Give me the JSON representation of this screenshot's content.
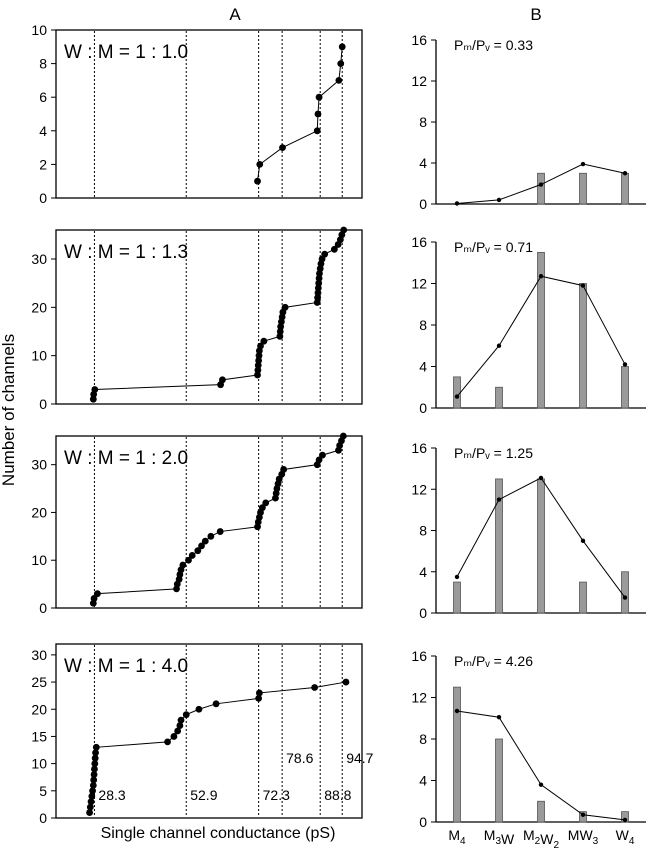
{
  "figure": {
    "column_a_label": "A",
    "column_b_label": "B",
    "y_axis_label": "Number of channels",
    "x_axis_label": "Single channel conductance (pS)",
    "mark_labels": [
      "28.3",
      "52.9",
      "72.3",
      "78.6",
      "88.8",
      "94.7"
    ]
  },
  "chart_data": [
    {
      "type": "scatter",
      "panel": "A1",
      "ratio_label": "W : M  =  1 : 1.0",
      "ylim": [
        0,
        10
      ],
      "yticks": [
        0,
        2,
        4,
        6,
        8,
        10
      ],
      "xlim": [
        18,
        100
      ],
      "reference_lines": [
        28.3,
        52.9,
        72.3,
        78.6,
        88.8,
        94.7
      ],
      "points": [
        [
          72.0,
          1
        ],
        [
          72.6,
          2
        ],
        [
          78.7,
          3
        ],
        [
          88.0,
          4
        ],
        [
          88.2,
          5
        ],
        [
          88.5,
          6
        ],
        [
          93.8,
          7
        ],
        [
          94.3,
          8
        ],
        [
          94.7,
          9
        ]
      ]
    },
    {
      "type": "scatter",
      "panel": "A2",
      "ratio_label": "W : M  =  1 : 1.3",
      "ylim": [
        0,
        36
      ],
      "yticks": [
        0,
        10,
        20,
        30
      ],
      "xlim": [
        18,
        100
      ],
      "reference_lines": [
        28.3,
        52.9,
        72.3,
        78.6,
        88.8,
        94.7
      ],
      "points": [
        [
          28.0,
          1
        ],
        [
          28.1,
          2
        ],
        [
          28.4,
          3
        ],
        [
          62.1,
          4
        ],
        [
          62.6,
          5
        ],
        [
          72.0,
          6
        ],
        [
          72.1,
          7
        ],
        [
          72.2,
          8
        ],
        [
          72.3,
          9
        ],
        [
          72.4,
          10
        ],
        [
          72.5,
          11
        ],
        [
          72.8,
          12
        ],
        [
          73.7,
          13
        ],
        [
          78.0,
          14
        ],
        [
          78.1,
          15
        ],
        [
          78.2,
          16
        ],
        [
          78.4,
          17
        ],
        [
          78.6,
          18
        ],
        [
          78.8,
          19
        ],
        [
          79.4,
          20
        ],
        [
          88.0,
          21
        ],
        [
          88.1,
          22
        ],
        [
          88.2,
          23
        ],
        [
          88.3,
          24
        ],
        [
          88.4,
          25
        ],
        [
          88.5,
          26
        ],
        [
          88.6,
          27
        ],
        [
          88.8,
          28
        ],
        [
          89.0,
          29
        ],
        [
          89.3,
          30
        ],
        [
          90.0,
          31
        ],
        [
          92.6,
          32
        ],
        [
          93.6,
          33
        ],
        [
          94.2,
          34
        ],
        [
          94.6,
          35
        ],
        [
          95.1,
          36
        ]
      ]
    },
    {
      "type": "scatter",
      "panel": "A3",
      "ratio_label": "W : M  =  1 : 2.0",
      "ylim": [
        0,
        36
      ],
      "yticks": [
        0,
        10,
        20,
        30
      ],
      "xlim": [
        18,
        100
      ],
      "reference_lines": [
        28.3,
        52.9,
        72.3,
        78.6,
        88.8,
        94.7
      ],
      "points": [
        [
          28.0,
          1
        ],
        [
          28.2,
          2
        ],
        [
          29.1,
          3
        ],
        [
          50.3,
          4
        ],
        [
          50.5,
          5
        ],
        [
          51.0,
          6
        ],
        [
          51.2,
          7
        ],
        [
          51.5,
          8
        ],
        [
          52.0,
          9
        ],
        [
          53.5,
          10
        ],
        [
          54.5,
          11
        ],
        [
          56.0,
          12
        ],
        [
          57.0,
          13
        ],
        [
          58.0,
          14
        ],
        [
          59.5,
          15
        ],
        [
          62.0,
          16
        ],
        [
          72.0,
          17
        ],
        [
          72.2,
          18
        ],
        [
          72.5,
          19
        ],
        [
          72.8,
          20
        ],
        [
          73.3,
          21
        ],
        [
          74.2,
          22
        ],
        [
          76.8,
          23
        ],
        [
          77.0,
          24
        ],
        [
          77.2,
          25
        ],
        [
          77.5,
          26
        ],
        [
          77.8,
          27
        ],
        [
          78.5,
          28
        ],
        [
          79.0,
          29
        ],
        [
          88.0,
          30
        ],
        [
          88.5,
          31
        ],
        [
          89.4,
          32
        ],
        [
          93.7,
          33
        ],
        [
          94.0,
          34
        ],
        [
          94.5,
          35
        ],
        [
          95.0,
          36
        ]
      ]
    },
    {
      "type": "scatter",
      "panel": "A4",
      "ratio_label": "W : M  =  1 : 4.0",
      "ylim": [
        0,
        32
      ],
      "yticks": [
        0,
        5,
        10,
        15,
        20,
        25,
        30
      ],
      "xlim": [
        18,
        100
      ],
      "reference_lines": [
        28.3,
        52.9,
        72.3,
        78.6,
        88.8,
        94.7
      ],
      "points": [
        [
          27.0,
          1
        ],
        [
          27.2,
          2
        ],
        [
          27.4,
          3
        ],
        [
          27.6,
          4
        ],
        [
          27.8,
          5
        ],
        [
          28.0,
          6
        ],
        [
          28.1,
          7
        ],
        [
          28.2,
          8
        ],
        [
          28.3,
          9
        ],
        [
          28.4,
          10
        ],
        [
          28.5,
          11
        ],
        [
          28.6,
          12
        ],
        [
          28.8,
          13
        ],
        [
          47.9,
          14
        ],
        [
          49.6,
          15
        ],
        [
          50.6,
          16
        ],
        [
          51.2,
          17
        ],
        [
          51.5,
          18
        ],
        [
          52.9,
          19
        ],
        [
          56.3,
          20
        ],
        [
          60.9,
          21
        ],
        [
          72.3,
          22
        ],
        [
          72.5,
          23
        ],
        [
          87.3,
          24
        ],
        [
          95.7,
          25
        ]
      ]
    },
    {
      "type": "bar",
      "panel": "B1",
      "ratio_label": "Pₘ/Pᵥ = 0.33",
      "categories": [
        "M4",
        "M3W",
        "M2W2",
        "MW3",
        "W4"
      ],
      "ylim": [
        0,
        16
      ],
      "yticks": [
        0,
        4,
        8,
        12,
        16
      ],
      "series": [
        {
          "kind": "bar",
          "values": [
            0,
            0,
            3,
            3,
            3
          ]
        },
        {
          "kind": "line",
          "values": [
            0.05,
            0.4,
            1.9,
            3.9,
            3.0
          ]
        }
      ]
    },
    {
      "type": "bar",
      "panel": "B2",
      "ratio_label": "Pₘ/Pᵥ = 0.71",
      "categories": [
        "M4",
        "M3W",
        "M2W2",
        "MW3",
        "W4"
      ],
      "ylim": [
        0,
        16
      ],
      "yticks": [
        0,
        4,
        8,
        12,
        16
      ],
      "series": [
        {
          "kind": "bar",
          "values": [
            3,
            2,
            15,
            12,
            4
          ]
        },
        {
          "kind": "line",
          "values": [
            1.1,
            6.0,
            12.7,
            11.8,
            4.2
          ]
        }
      ]
    },
    {
      "type": "bar",
      "panel": "B3",
      "ratio_label": "Pₘ/Pᵥ = 1.25",
      "categories": [
        "M4",
        "M3W",
        "M2W2",
        "MW3",
        "W4"
      ],
      "ylim": [
        0,
        16
      ],
      "yticks": [
        0,
        4,
        8,
        12,
        16
      ],
      "series": [
        {
          "kind": "bar",
          "values": [
            3,
            13,
            13,
            3,
            4
          ]
        },
        {
          "kind": "line",
          "values": [
            3.5,
            11.0,
            13.1,
            7.0,
            1.5
          ]
        }
      ]
    },
    {
      "type": "bar",
      "panel": "B4",
      "ratio_label": "Pₘ/Pᵥ = 4.26",
      "categories": [
        "M4",
        "M3W",
        "M2W2",
        "MW3",
        "W4"
      ],
      "ylim": [
        0,
        16
      ],
      "yticks": [
        0,
        4,
        8,
        12,
        16
      ],
      "series": [
        {
          "kind": "bar",
          "values": [
            13,
            8,
            2,
            1,
            1
          ]
        },
        {
          "kind": "line",
          "values": [
            10.7,
            10.1,
            3.6,
            0.7,
            0.2
          ]
        }
      ]
    }
  ]
}
